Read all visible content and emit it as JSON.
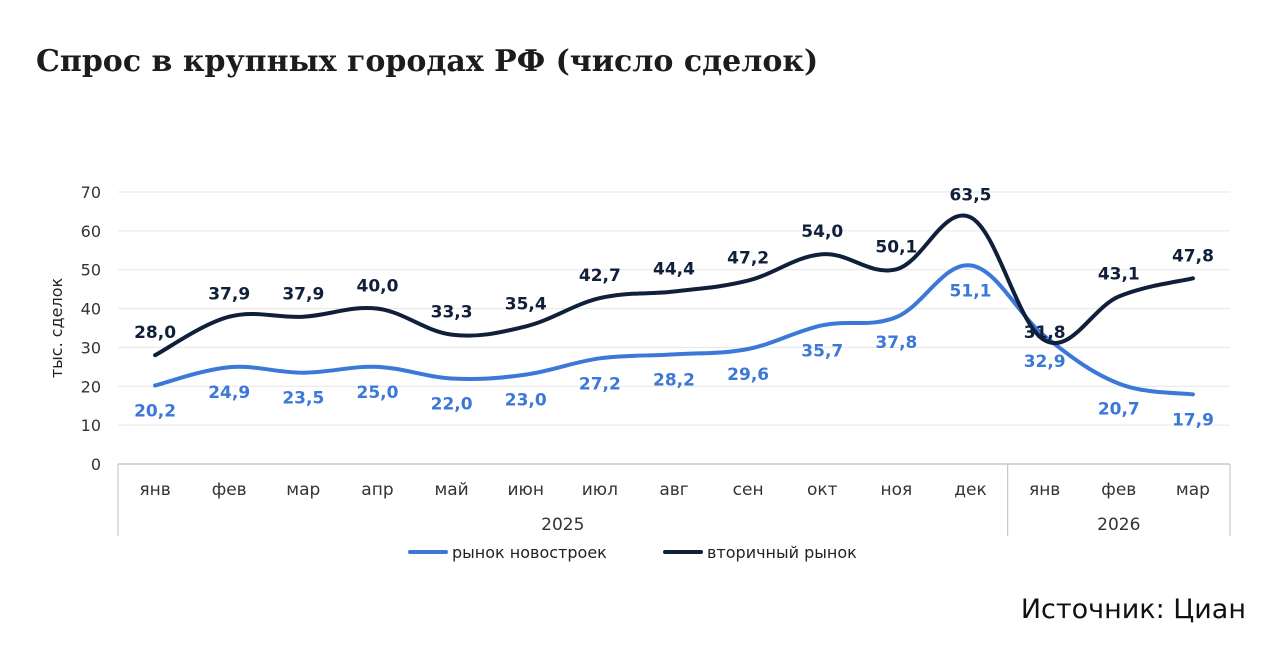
{
  "title": "Спрос в крупных городах РФ (число сделок)",
  "source": "Источник: Циан",
  "colors": {
    "new_buildings": "#3b78d8",
    "secondary": "#10203a",
    "grid": "#e6e6e6",
    "axis": "#c8c8c8"
  },
  "chart_data": {
    "type": "line",
    "title": "",
    "xlabel": "",
    "ylabel": "тыс. сделок",
    "ylim": [
      0,
      70
    ],
    "yticks": [
      "0",
      "10",
      "20",
      "30",
      "40",
      "50",
      "60",
      "70"
    ],
    "grid": true,
    "legend_position": "bottom",
    "categories": [
      "янв",
      "фев",
      "мар",
      "апр",
      "май",
      "июн",
      "июл",
      "авг",
      "сен",
      "окт",
      "ноя",
      "дек",
      "янв",
      "фев",
      "мар"
    ],
    "year_groups": [
      {
        "label": "2025",
        "count": 12
      },
      {
        "label": "2026",
        "count": 3
      }
    ],
    "series": [
      {
        "name": "рынок новостроек",
        "color": "#3b78d8",
        "values": [
          20.2,
          24.9,
          23.5,
          25.0,
          22.0,
          23.0,
          27.2,
          28.2,
          29.6,
          35.7,
          37.8,
          51.1,
          32.9,
          20.7,
          17.9
        ],
        "labels": [
          "20,2",
          "24,9",
          "23,5",
          "25,0",
          "22,0",
          "23,0",
          "27,2",
          "28,2",
          "29,6",
          "35,7",
          "37,8",
          "51,1",
          "32,9",
          "20,7",
          "17,9"
        ]
      },
      {
        "name": "вторичный рынок",
        "color": "#10203a",
        "values": [
          28.0,
          37.9,
          37.9,
          40.0,
          33.3,
          35.4,
          42.7,
          44.4,
          47.2,
          54.0,
          50.1,
          63.5,
          31.8,
          43.1,
          47.8
        ],
        "labels": [
          "28,0",
          "37,9",
          "37,9",
          "40,0",
          "33,3",
          "35,4",
          "42,7",
          "44,4",
          "47,2",
          "54,0",
          "50,1",
          "63,5",
          "31,8",
          "43,1",
          "47,8"
        ]
      }
    ]
  }
}
